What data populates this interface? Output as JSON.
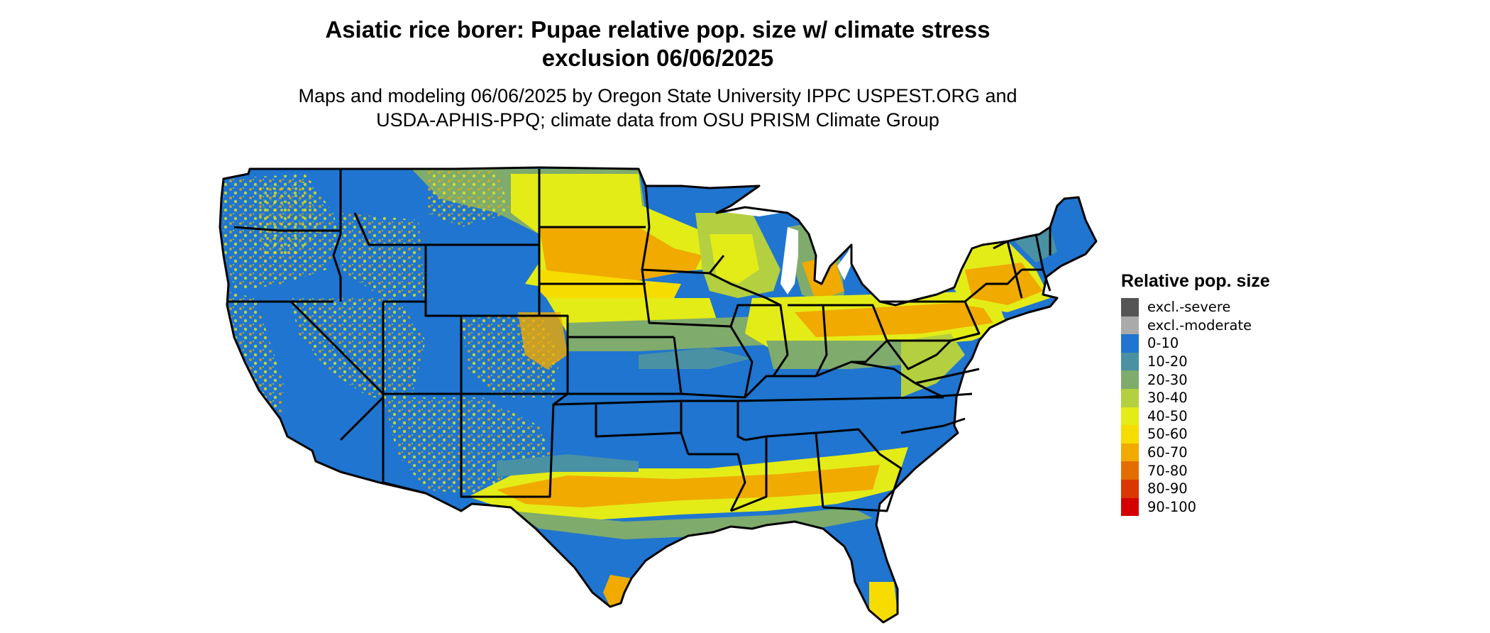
{
  "header": {
    "title_line1": "Asiatic rice borer: Pupae relative pop. size w/ climate stress",
    "title_line2": "exclusion 06/06/2025",
    "subtitle_line1": "Maps and modeling 06/06/2025 by Oregon State University IPPC USPEST.ORG and",
    "subtitle_line2": "USDA-APHIS-PPQ; climate data from OSU PRISM Climate Group"
  },
  "legend": {
    "title": "Relative pop. size",
    "items": [
      {
        "label": "excl.-severe",
        "color": "#555555"
      },
      {
        "label": "excl.-moderate",
        "color": "#aaaaaa"
      },
      {
        "label": "0-10",
        "color": "#1f75cf"
      },
      {
        "label": "10-20",
        "color": "#4a91a3"
      },
      {
        "label": "20-30",
        "color": "#7fab6d"
      },
      {
        "label": "30-40",
        "color": "#b4cf3f"
      },
      {
        "label": "40-50",
        "color": "#e3ec17"
      },
      {
        "label": "50-60",
        "color": "#f7dc00"
      },
      {
        "label": "60-70",
        "color": "#f0aa00"
      },
      {
        "label": "70-80",
        "color": "#e46d00"
      },
      {
        "label": "80-90",
        "color": "#d93800"
      },
      {
        "label": "90-100",
        "color": "#d40000"
      }
    ]
  },
  "map": {
    "colors": {
      "land_default": "#1f75cf",
      "border": "#000000"
    }
  }
}
